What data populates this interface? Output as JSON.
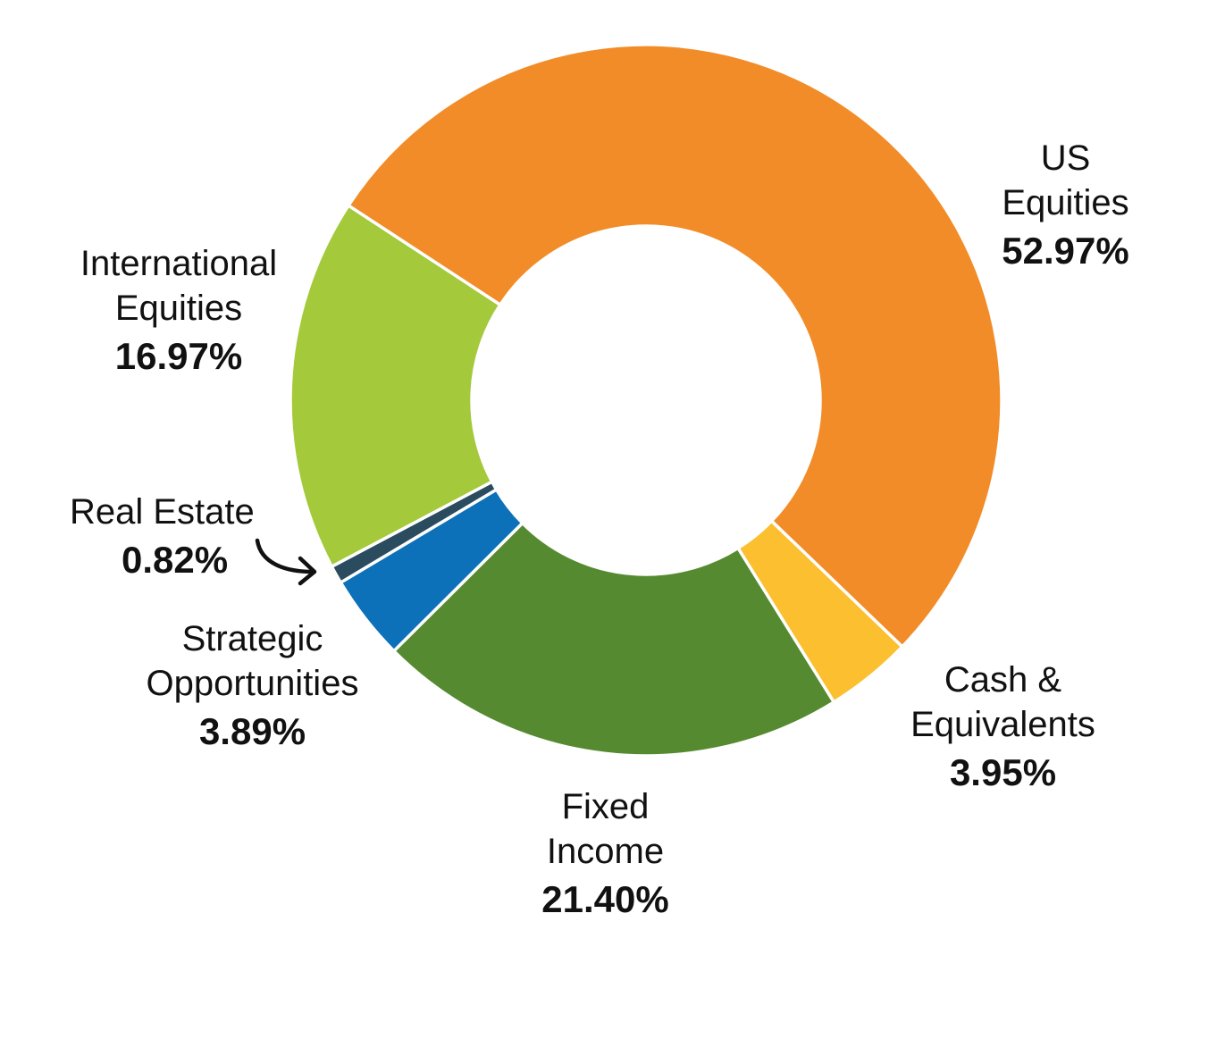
{
  "chart_data": {
    "type": "pie",
    "donut": true,
    "slices": [
      {
        "key": "us-equities",
        "name_lines": [
          "US",
          "Equities"
        ],
        "value": 52.97,
        "label": "52.97%",
        "color": "#F28C28"
      },
      {
        "key": "cash-equivalents",
        "name_lines": [
          "Cash &",
          "Equivalents"
        ],
        "value": 3.95,
        "label": "3.95%",
        "color": "#FBBF30"
      },
      {
        "key": "fixed-income",
        "name_lines": [
          "Fixed",
          "Income"
        ],
        "value": 21.4,
        "label": "21.40%",
        "color": "#568A31"
      },
      {
        "key": "strategic-opportunities",
        "name_lines": [
          "Strategic",
          "Opportunities"
        ],
        "value": 3.89,
        "label": "3.89%",
        "color": "#0D71B9"
      },
      {
        "key": "real-estate",
        "name_lines": [
          "Real Estate"
        ],
        "value": 0.82,
        "label": "0.82%",
        "color": "#2B4B5E"
      },
      {
        "key": "international-equities",
        "name_lines": [
          "International",
          "Equities"
        ],
        "value": 16.97,
        "label": "16.97%",
        "color": "#A4C93B"
      }
    ],
    "title": "",
    "legend": "none"
  }
}
